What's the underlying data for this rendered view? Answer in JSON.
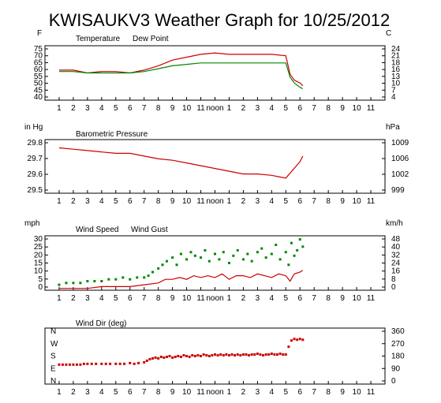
{
  "title": "KWISAUKV3 Weather Graph for 10/25/2012",
  "colors": {
    "red": "#cc0000",
    "green": "#008800",
    "frame": "#000000",
    "background": "#ffffff"
  },
  "x_ticks": [
    "1",
    "2",
    "3",
    "4",
    "5",
    "6",
    "7",
    "8",
    "9",
    "10",
    "11",
    "noon",
    "1",
    "2",
    "3",
    "4",
    "5",
    "6",
    "7",
    "8",
    "9",
    "10",
    "11"
  ],
  "chart_data": [
    {
      "type": "line",
      "left_unit": "F",
      "right_unit": "C",
      "legend": [
        "Temperature",
        "Dew Point"
      ],
      "left_ticks": [
        "75",
        "70",
        "65",
        "60",
        "55",
        "50",
        "45",
        "40"
      ],
      "right_ticks": [
        "24",
        "21",
        "18",
        "16",
        "13",
        "10",
        "7",
        "4"
      ],
      "ylim": [
        40,
        78
      ],
      "grid": false,
      "series": [
        {
          "name": "Temperature",
          "color": "#cc0000",
          "style": "line",
          "x": [
            0,
            1,
            2,
            3,
            4,
            5,
            6,
            7,
            8,
            9,
            10,
            11,
            12,
            13,
            14,
            15,
            16,
            16.3,
            16.6,
            17,
            17.2
          ],
          "y": [
            61,
            61,
            59,
            60,
            60,
            59,
            61,
            64,
            68,
            70,
            72,
            73,
            72,
            72,
            72,
            72,
            71,
            58,
            54,
            52,
            50
          ]
        },
        {
          "name": "Dew Point",
          "color": "#008800",
          "style": "line",
          "x": [
            0,
            1,
            2,
            3,
            4,
            5,
            6,
            7,
            8,
            9,
            10,
            11,
            12,
            13,
            14,
            15,
            16,
            16.3,
            16.6,
            17,
            17.2
          ],
          "y": [
            60,
            60,
            59,
            59,
            59,
            59,
            60,
            62,
            64,
            65,
            66,
            66,
            66,
            66,
            66,
            66,
            66,
            56,
            52,
            49,
            48
          ]
        }
      ]
    },
    {
      "type": "line",
      "left_unit": "in Hg",
      "right_unit": "hPa",
      "legend": [
        "Barometric Pressure"
      ],
      "left_ticks": [
        "29.8",
        "29.7",
        "29.6",
        "29.5"
      ],
      "right_ticks": [
        "1009",
        "1006",
        "1002",
        "999"
      ],
      "ylim": [
        29.47,
        29.86
      ],
      "grid": false,
      "series": [
        {
          "name": "Barometric Pressure",
          "color": "#cc0000",
          "style": "line",
          "x": [
            0,
            1,
            2,
            3,
            4,
            5,
            6,
            7,
            8,
            9,
            10,
            11,
            12,
            13,
            14,
            15,
            15.5,
            16,
            16.5,
            17,
            17.2
          ],
          "y": [
            29.8,
            29.79,
            29.78,
            29.77,
            29.76,
            29.76,
            29.74,
            29.72,
            29.71,
            29.69,
            29.67,
            29.65,
            29.63,
            29.61,
            29.61,
            29.6,
            29.59,
            29.58,
            29.64,
            29.7,
            29.74
          ]
        }
      ]
    },
    {
      "type": "line",
      "left_unit": "mph",
      "right_unit": "km/h",
      "legend": [
        "Wind Speed",
        "Wind Gust"
      ],
      "left_ticks": [
        "30",
        "25",
        "20",
        "15",
        "10",
        "5",
        "0"
      ],
      "right_ticks": [
        "48",
        "40",
        "32",
        "24",
        "16",
        "8",
        "0"
      ],
      "ylim": [
        0,
        30
      ],
      "grid": false,
      "series": [
        {
          "name": "Wind Speed",
          "color": "#cc0000",
          "style": "line",
          "x": [
            0,
            1,
            2,
            3,
            4,
            5,
            6,
            7,
            7.5,
            8,
            8.5,
            9,
            9.5,
            10,
            10.5,
            11,
            11.5,
            12,
            12.5,
            13,
            13.5,
            14,
            14.5,
            15,
            15.5,
            16,
            16.3,
            16.6,
            17,
            17.2
          ],
          "y": [
            1,
            1,
            1,
            2,
            2,
            2,
            3,
            4,
            6,
            6,
            7,
            6,
            8,
            7,
            8,
            7,
            9,
            6,
            8,
            8,
            7,
            9,
            8,
            7,
            9,
            8,
            5,
            9,
            10,
            11
          ]
        },
        {
          "name": "Wind Gust",
          "color": "#008800",
          "style": "squares",
          "x": [
            0,
            0.5,
            1,
            1.5,
            2,
            2.5,
            3,
            3.5,
            4,
            4.5,
            5,
            5.5,
            6,
            6.3,
            6.6,
            7,
            7.3,
            7.6,
            8,
            8.3,
            8.6,
            9,
            9.3,
            9.6,
            10,
            10.3,
            10.6,
            11,
            11.3,
            11.6,
            12,
            12.3,
            12.6,
            13,
            13.3,
            13.6,
            14,
            14.3,
            14.6,
            15,
            15.3,
            15.6,
            16,
            16.2,
            16.4,
            16.6,
            16.8,
            17,
            17.2
          ],
          "y": [
            3,
            4,
            4,
            4,
            5,
            5,
            5,
            6,
            6,
            7,
            6,
            7,
            7,
            8,
            10,
            12,
            14,
            16,
            18,
            14,
            20,
            17,
            21,
            19,
            18,
            22,
            16,
            20,
            17,
            21,
            15,
            19,
            22,
            17,
            20,
            16,
            21,
            23,
            18,
            20,
            25,
            17,
            21,
            14,
            26,
            19,
            22,
            28,
            24
          ]
        }
      ]
    },
    {
      "type": "scatter",
      "legend": [
        "Wind Dir (deg)"
      ],
      "left_ticks": [
        "N",
        "W",
        "S",
        "E",
        "N"
      ],
      "right_ticks": [
        "360",
        "270",
        "180",
        "90",
        "0"
      ],
      "ylim": [
        0,
        360
      ],
      "grid": false,
      "series": [
        {
          "name": "Wind Dir (deg)",
          "color": "#cc0000",
          "style": "squares",
          "x": [
            0,
            0.25,
            0.5,
            0.75,
            1,
            1.25,
            1.5,
            1.75,
            2,
            2.3,
            2.6,
            3,
            3.3,
            3.6,
            4,
            4.3,
            4.6,
            5,
            5.3,
            5.6,
            6,
            6.2,
            6.4,
            6.6,
            6.8,
            7,
            7.2,
            7.4,
            7.6,
            7.8,
            8,
            8.2,
            8.4,
            8.6,
            8.8,
            9,
            9.2,
            9.4,
            9.6,
            9.8,
            10,
            10.2,
            10.4,
            10.6,
            10.8,
            11,
            11.2,
            11.4,
            11.6,
            11.8,
            12,
            12.2,
            12.4,
            12.6,
            12.8,
            13,
            13.2,
            13.4,
            13.6,
            13.8,
            14,
            14.2,
            14.4,
            14.6,
            14.8,
            15,
            15.2,
            15.4,
            15.6,
            15.8,
            16,
            16.2,
            16.4,
            16.6,
            16.8,
            17,
            17.2
          ],
          "y": [
            125,
            125,
            125,
            125,
            125,
            125,
            125,
            130,
            130,
            130,
            130,
            130,
            130,
            130,
            130,
            130,
            130,
            135,
            130,
            135,
            140,
            150,
            160,
            165,
            170,
            165,
            175,
            170,
            175,
            180,
            170,
            175,
            180,
            175,
            185,
            180,
            175,
            185,
            180,
            185,
            180,
            190,
            185,
            180,
            185,
            190,
            185,
            190,
            185,
            190,
            185,
            190,
            185,
            190,
            185,
            190,
            190,
            185,
            190,
            190,
            195,
            190,
            185,
            190,
            190,
            195,
            190,
            190,
            195,
            190,
            190,
            240,
            280,
            290,
            285,
            290,
            285
          ]
        }
      ]
    }
  ]
}
